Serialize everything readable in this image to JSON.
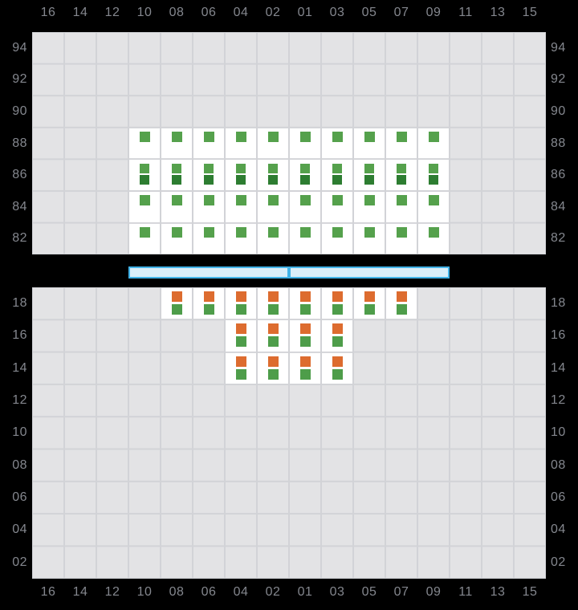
{
  "columns": [
    "16",
    "14",
    "12",
    "10",
    "08",
    "06",
    "04",
    "02",
    "01",
    "03",
    "05",
    "07",
    "09",
    "11",
    "13",
    "15"
  ],
  "deck_section": {
    "tier_labels": [
      "94",
      "92",
      "90",
      "88",
      "86",
      "84",
      "82"
    ],
    "slots": [
      {
        "tier": "88",
        "rows": [
          "10",
          "08",
          "06",
          "04",
          "02",
          "01",
          "03",
          "05",
          "07",
          "09"
        ],
        "markers": [
          "green_light"
        ]
      },
      {
        "tier": "86",
        "rows": [
          "10",
          "08",
          "06",
          "04",
          "02",
          "01",
          "03",
          "05",
          "07",
          "09"
        ],
        "markers": [
          "green_light",
          "green_dark"
        ]
      },
      {
        "tier": "84",
        "rows": [
          "10",
          "08",
          "06",
          "04",
          "02",
          "01",
          "03",
          "05",
          "07",
          "09"
        ],
        "markers": [
          "green_light"
        ]
      },
      {
        "tier": "82",
        "rows": [
          "10",
          "08",
          "06",
          "04",
          "02",
          "01",
          "03",
          "05",
          "07",
          "09"
        ],
        "markers": [
          "green_light"
        ]
      }
    ]
  },
  "hold_section": {
    "tier_labels": [
      "18",
      "16",
      "14",
      "12",
      "10",
      "08",
      "06",
      "04",
      "02"
    ],
    "slots": [
      {
        "tier": "18",
        "rows": [
          "08",
          "06",
          "04",
          "02",
          "01",
          "03",
          "05",
          "07"
        ],
        "markers": [
          "orange",
          "green"
        ]
      },
      {
        "tier": "16",
        "rows": [
          "04",
          "02",
          "01",
          "03"
        ],
        "markers": [
          "orange",
          "green"
        ]
      },
      {
        "tier": "14",
        "rows": [
          "04",
          "02",
          "01",
          "03"
        ],
        "markers": [
          "orange",
          "green"
        ]
      }
    ]
  },
  "hatch_cover": {
    "segment_count": 2
  },
  "colors": {
    "page_bg": "#000000",
    "grid_bg": "#e3e3e5",
    "grid_line": "#d2d3d7",
    "slot_bg": "#ffffff",
    "label": "#84878e",
    "green_light": "#55a14c",
    "green_dark": "#2d7d31",
    "green": "#4e9d4a",
    "orange": "#dd6c2f",
    "hatch_fill": "#daeef9",
    "hatch_border": "#42b3e8"
  }
}
